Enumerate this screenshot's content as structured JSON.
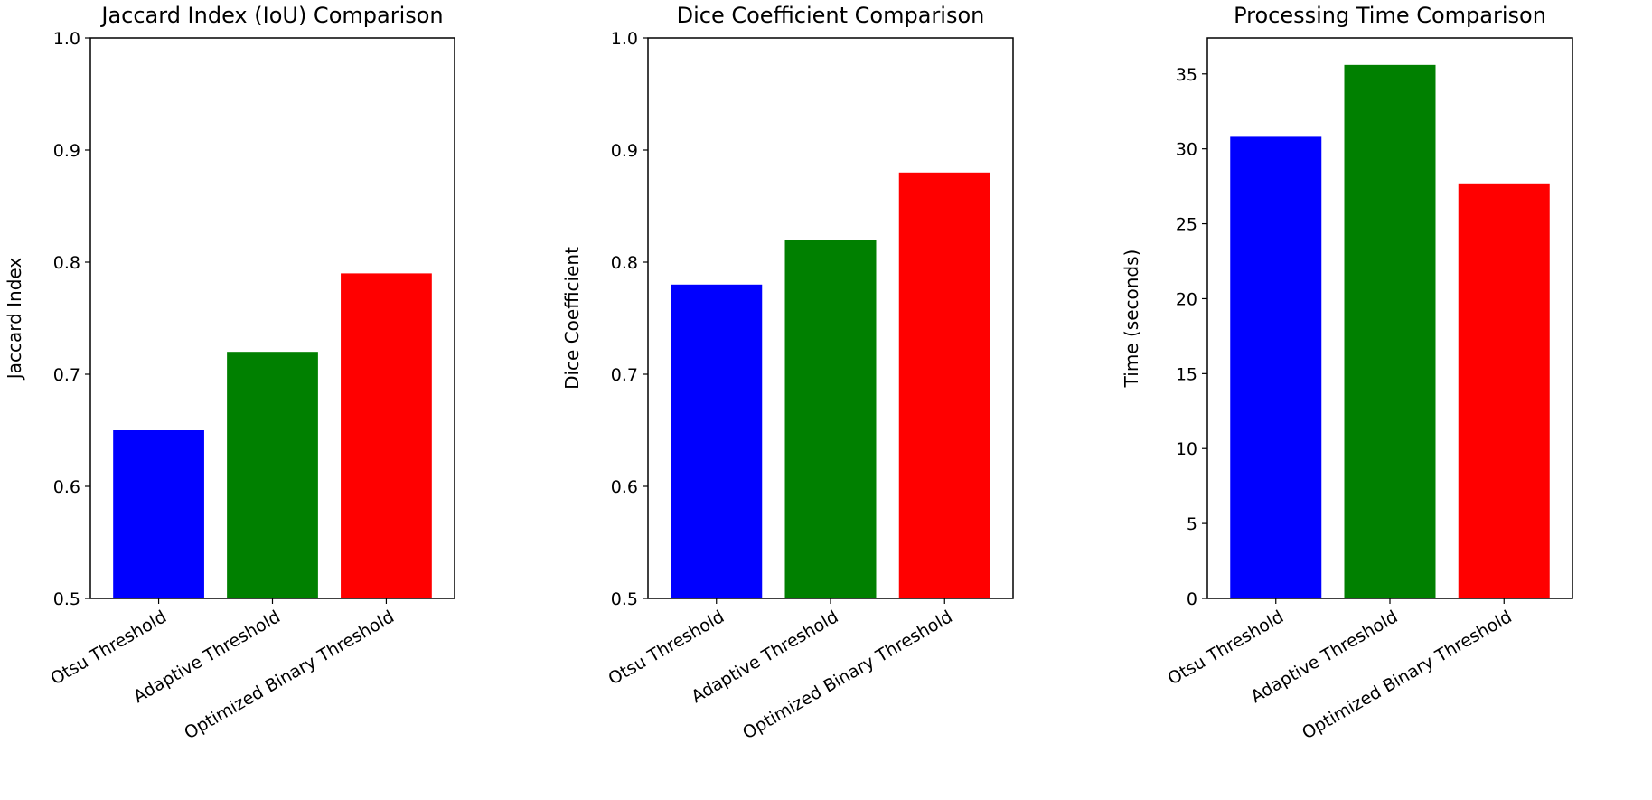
{
  "chart_data": [
    {
      "type": "bar",
      "title": "Jaccard Index (IoU) Comparison",
      "xlabel": "",
      "ylabel": "Jaccard Index",
      "ylim": [
        0.5,
        1.0
      ],
      "yticks": [
        "0.5",
        "0.6",
        "0.7",
        "0.8",
        "0.9",
        "1.0"
      ],
      "categories": [
        "Otsu Threshold",
        "Adaptive Threshold",
        "Optimized Binary Threshold"
      ],
      "values": [
        0.65,
        0.72,
        0.79
      ],
      "colors": [
        "#0000ff",
        "#008000",
        "#ff0000"
      ]
    },
    {
      "type": "bar",
      "title": "Dice Coefficient Comparison",
      "xlabel": "",
      "ylabel": "Dice Coefficient",
      "ylim": [
        0.5,
        1.0
      ],
      "yticks": [
        "0.5",
        "0.6",
        "0.7",
        "0.8",
        "0.9",
        "1.0"
      ],
      "categories": [
        "Otsu Threshold",
        "Adaptive Threshold",
        "Optimized Binary Threshold"
      ],
      "values": [
        0.78,
        0.82,
        0.88
      ],
      "colors": [
        "#0000ff",
        "#008000",
        "#ff0000"
      ]
    },
    {
      "type": "bar",
      "title": "Processing Time Comparison",
      "xlabel": "",
      "ylabel": "Time (seconds)",
      "ylim": [
        0,
        37.4
      ],
      "yticks": [
        "0",
        "5",
        "10",
        "15",
        "20",
        "25",
        "30",
        "35"
      ],
      "categories": [
        "Otsu Threshold",
        "Adaptive Threshold",
        "Optimized Binary Threshold"
      ],
      "values": [
        30.8,
        35.6,
        27.7
      ],
      "colors": [
        "#0000ff",
        "#008000",
        "#ff0000"
      ]
    }
  ]
}
